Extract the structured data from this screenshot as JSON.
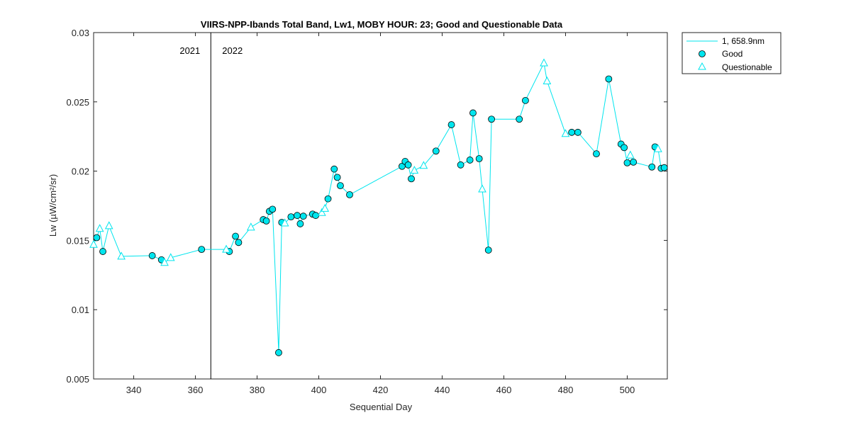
{
  "chart_data": {
    "type": "line",
    "title": "VIIRS-NPP-Ibands Total Band,  Lw1, MOBY HOUR: 23;  Good and Questionable Data",
    "xlabel": "Sequential Day",
    "ylabel": "Lw (µW/cm²/sr)",
    "xlim": [
      327,
      513
    ],
    "ylim": [
      0.005,
      0.03
    ],
    "xticks": [
      340,
      360,
      380,
      400,
      420,
      440,
      460,
      480,
      500
    ],
    "yticks": [
      0.005,
      0.01,
      0.015,
      0.02,
      0.025,
      0.03
    ],
    "ytick_labels": [
      "0.005",
      "0.01",
      "0.015",
      "0.02",
      "0.025",
      "0.03"
    ],
    "year_divider": {
      "x": 365,
      "left_label": "2021",
      "right_label": "2022"
    },
    "grid": false,
    "legend_position": "outside-top-right",
    "colors": {
      "line": "#00e5ee",
      "marker_fill": "#00e5ee",
      "marker_edge": "#000000",
      "axis": "#262626"
    },
    "series": [
      {
        "name": "1, 658.9nm",
        "x": [
          327,
          328,
          329,
          330,
          332,
          336,
          346,
          349,
          350,
          352,
          362,
          370,
          371,
          373,
          374,
          378,
          382,
          383,
          384,
          385,
          387,
          388,
          389,
          391,
          393,
          394,
          395,
          398,
          399,
          401,
          402,
          403,
          405,
          406,
          407,
          410,
          427,
          428,
          429,
          430,
          431,
          434,
          438,
          443,
          446,
          449,
          450,
          452,
          453,
          455,
          456,
          465,
          467,
          473,
          474,
          480,
          482,
          484,
          490,
          494,
          498,
          499,
          500,
          501,
          502,
          508,
          509,
          510,
          511,
          512
        ],
        "y": [
          0.0147,
          0.0152,
          0.01585,
          0.0142,
          0.01605,
          0.01385,
          0.0139,
          0.0136,
          0.0134,
          0.01375,
          0.01435,
          0.01435,
          0.0142,
          0.0153,
          0.01485,
          0.01595,
          0.0165,
          0.0164,
          0.0171,
          0.01725,
          0.0069,
          0.0163,
          0.01625,
          0.0167,
          0.0168,
          0.0162,
          0.01675,
          0.0169,
          0.0168,
          0.017,
          0.0173,
          0.018,
          0.02015,
          0.01955,
          0.01895,
          0.0183,
          0.02035,
          0.0207,
          0.02045,
          0.01945,
          0.02005,
          0.0204,
          0.02145,
          0.02335,
          0.02045,
          0.0208,
          0.0242,
          0.0209,
          0.0187,
          0.0143,
          0.02375,
          0.02375,
          0.0251,
          0.0278,
          0.0265,
          0.0227,
          0.0228,
          0.0228,
          0.02125,
          0.02665,
          0.02195,
          0.0217,
          0.0206,
          0.02115,
          0.02065,
          0.0203,
          0.02175,
          0.0216,
          0.0202,
          0.02025
        ]
      },
      {
        "name": "Good",
        "x": [
          328,
          330,
          346,
          349,
          362,
          371,
          373,
          374,
          382,
          383,
          384,
          385,
          387,
          388,
          391,
          393,
          394,
          395,
          398,
          399,
          403,
          405,
          406,
          407,
          410,
          427,
          428,
          429,
          430,
          438,
          443,
          446,
          449,
          450,
          452,
          455,
          456,
          465,
          467,
          482,
          484,
          490,
          494,
          498,
          499,
          500,
          502,
          508,
          509,
          511,
          512
        ],
        "y": [
          0.0152,
          0.0142,
          0.0139,
          0.0136,
          0.01435,
          0.0142,
          0.0153,
          0.01485,
          0.0165,
          0.0164,
          0.0171,
          0.01725,
          0.0069,
          0.0163,
          0.0167,
          0.0168,
          0.0162,
          0.01675,
          0.0169,
          0.0168,
          0.018,
          0.02015,
          0.01955,
          0.01895,
          0.0183,
          0.02035,
          0.0207,
          0.02045,
          0.01945,
          0.02145,
          0.02335,
          0.02045,
          0.0208,
          0.0242,
          0.0209,
          0.0143,
          0.02375,
          0.02375,
          0.0251,
          0.0228,
          0.0228,
          0.02125,
          0.02665,
          0.02195,
          0.0217,
          0.0206,
          0.02065,
          0.0203,
          0.02175,
          0.0202,
          0.02025
        ]
      },
      {
        "name": "Questionable",
        "x": [
          327,
          329,
          332,
          336,
          350,
          352,
          370,
          378,
          389,
          401,
          402,
          431,
          434,
          453,
          473,
          474,
          480,
          501,
          510
        ],
        "y": [
          0.0147,
          0.01585,
          0.01605,
          0.01385,
          0.0134,
          0.01375,
          0.01435,
          0.01595,
          0.01625,
          0.017,
          0.0173,
          0.02005,
          0.0204,
          0.0187,
          0.0278,
          0.0265,
          0.0227,
          0.02115,
          0.0216
        ]
      }
    ]
  }
}
